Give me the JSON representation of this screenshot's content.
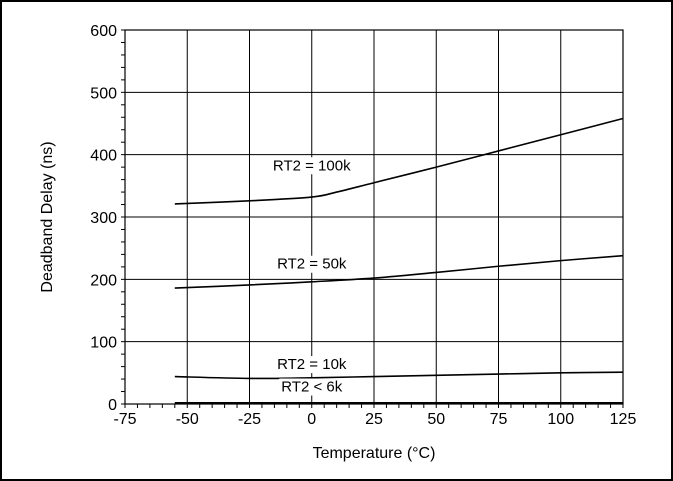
{
  "chart_data": {
    "type": "line",
    "title": "",
    "xlabel": "Temperature (°C)",
    "ylabel": "Deadband Delay (ns)",
    "xlim": [
      -75,
      125
    ],
    "ylim": [
      0,
      600
    ],
    "x_ticks": [
      -75,
      -50,
      -25,
      0,
      25,
      50,
      75,
      100,
      125
    ],
    "x_tick_labels": [
      "-75",
      "-50",
      "-25",
      "0",
      "25",
      "50",
      "75",
      "100",
      "125"
    ],
    "y_ticks": [
      0,
      100,
      200,
      300,
      400,
      500,
      600
    ],
    "y_tick_labels": [
      "0",
      "100",
      "200",
      "300",
      "400",
      "500",
      "600"
    ],
    "grid": true,
    "series": [
      {
        "name": "RT2 = 100k",
        "x": [
          -55,
          -25,
          0,
          10,
          25,
          50,
          75,
          100,
          125
        ],
        "y": [
          321,
          326,
          332,
          340,
          355,
          380,
          406,
          432,
          458
        ]
      },
      {
        "name": "RT2 = 50k",
        "x": [
          -55,
          -25,
          0,
          25,
          50,
          75,
          100,
          125
        ],
        "y": [
          186,
          191,
          196,
          202,
          211,
          221,
          230,
          238
        ]
      },
      {
        "name": "RT2 = 10k",
        "x": [
          -55,
          -25,
          0,
          25,
          50,
          75,
          100,
          125
        ],
        "y": [
          44,
          41,
          42,
          44,
          46,
          48,
          50,
          51
        ]
      },
      {
        "name": "RT2 < 6k",
        "x": [
          -55,
          0,
          50,
          125
        ],
        "y": [
          2,
          2,
          2,
          2
        ]
      }
    ],
    "annotations": [
      {
        "text": "RT2 = 100k",
        "x": 0,
        "y": 375
      },
      {
        "text": "RT2 = 50k",
        "x": 0,
        "y": 217
      },
      {
        "text": "RT2 = 10k",
        "x": 0,
        "y": 56
      },
      {
        "text": "RT2 < 6k",
        "x": 0,
        "y": 20
      }
    ]
  }
}
